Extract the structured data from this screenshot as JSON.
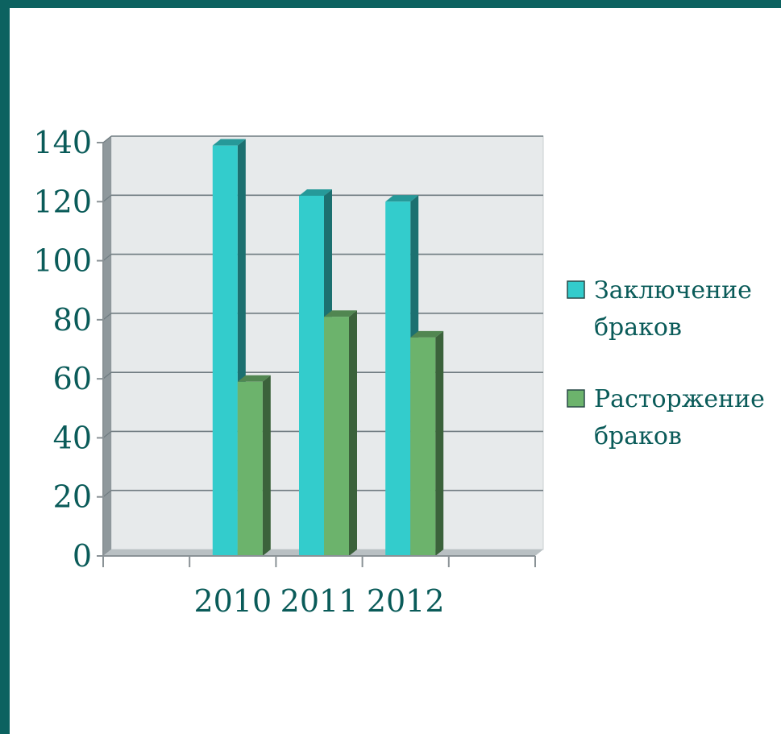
{
  "colors": {
    "frame": "#0c6260",
    "text": "#0a5b59",
    "wall": "#e7eaeb",
    "gridline": "#6f7b80",
    "series1": "#33cccc",
    "series2": "#6cb36c"
  },
  "chart_data": {
    "type": "bar",
    "bar_style": "3d-clustered-column",
    "categories": [
      "2010",
      "2011",
      "2012"
    ],
    "series": [
      {
        "name": "Заключение браков",
        "legend_lines": [
          "Заключение",
          "браков"
        ],
        "values": [
          139,
          122,
          120
        ],
        "color": "#33cccc"
      },
      {
        "name": "Расторжение браков",
        "legend_lines": [
          "Расторжение",
          "браков"
        ],
        "values": [
          59,
          81,
          74
        ],
        "color": "#6cb36c"
      }
    ],
    "ylim": [
      0,
      140
    ],
    "yticks": [
      0,
      20,
      40,
      60,
      80,
      100,
      120,
      140
    ],
    "grid": true,
    "legend_position": "right",
    "title": "",
    "xlabel": "",
    "ylabel": ""
  }
}
